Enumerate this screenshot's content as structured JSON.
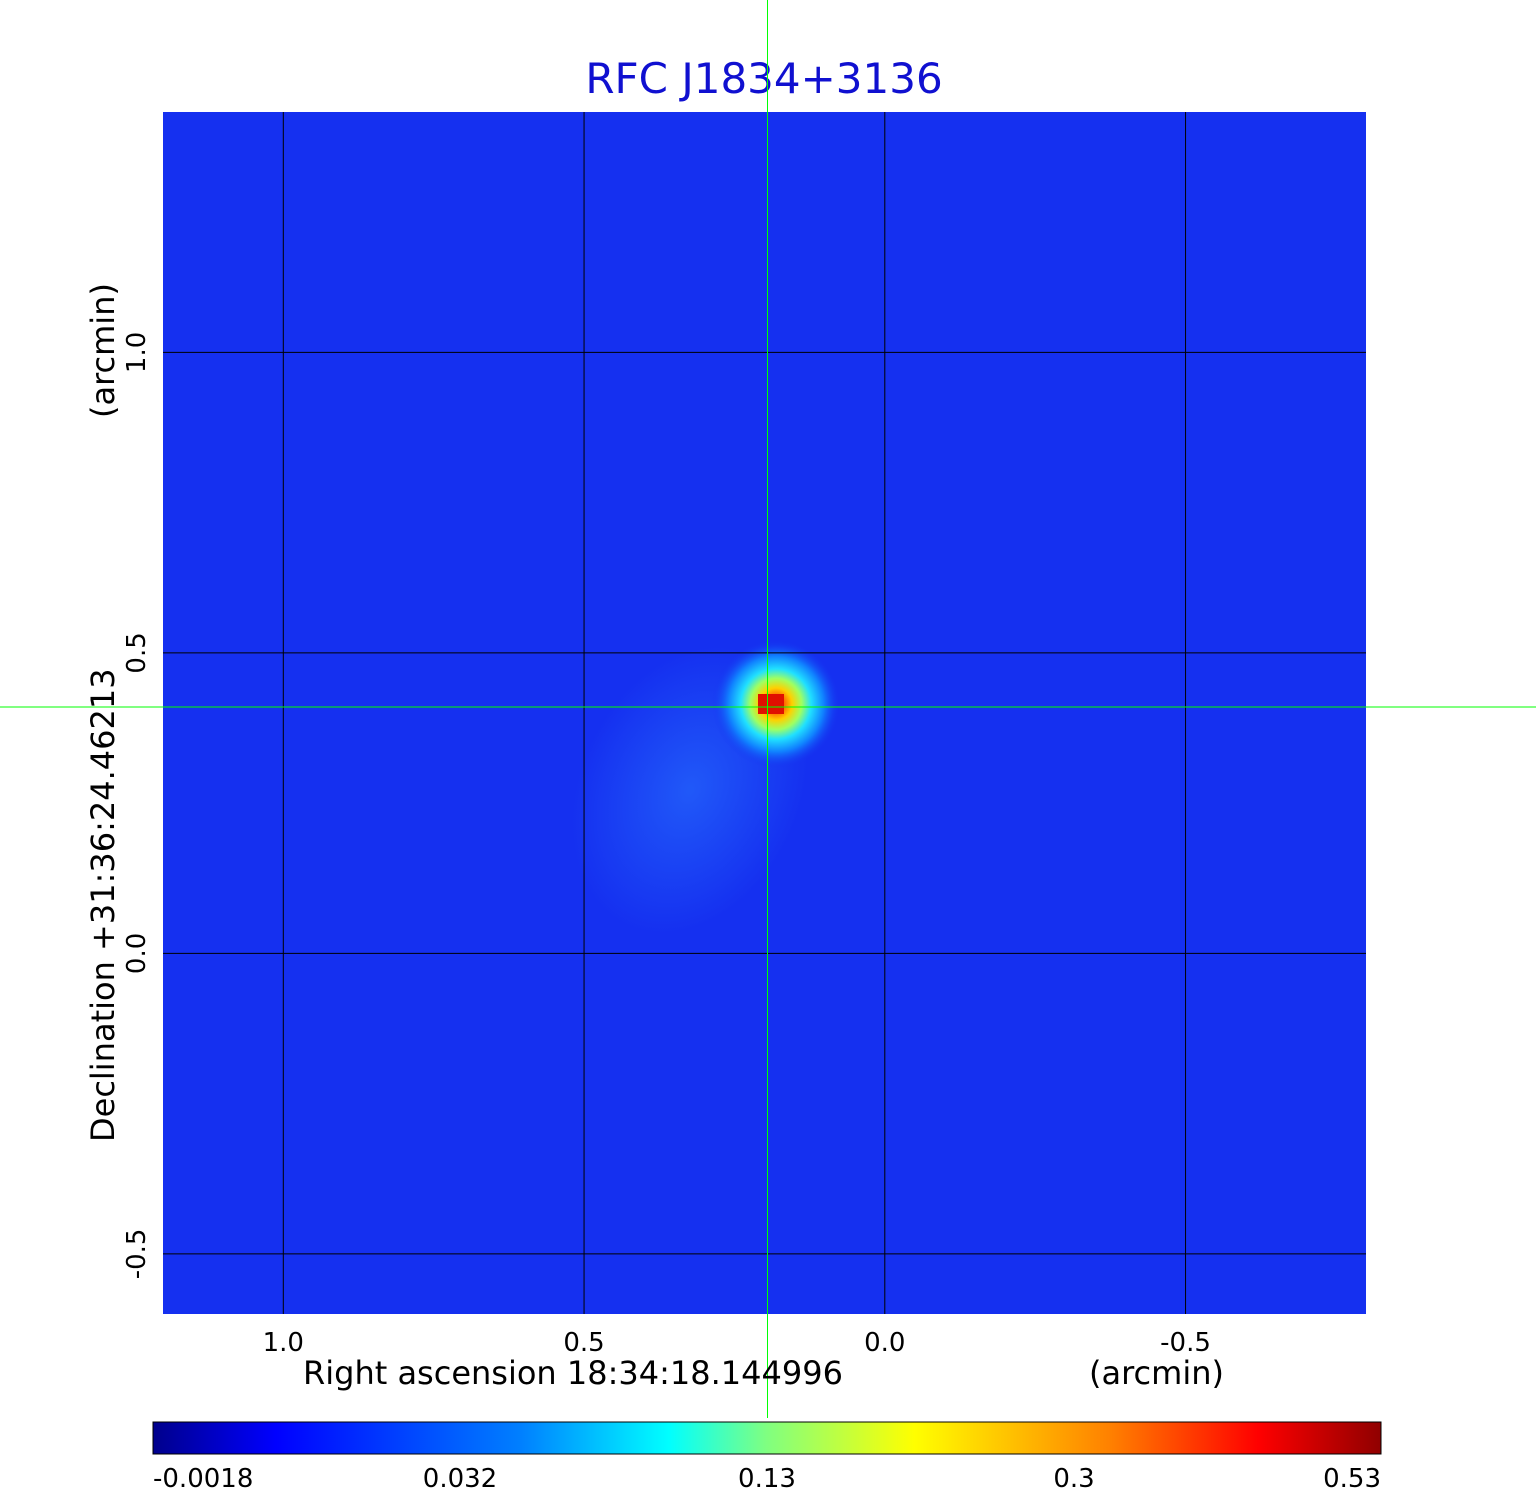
{
  "chart_data": {
    "type": "heatmap",
    "title": "RFC J1834+3136",
    "xlabel": "Right ascension  18:34:18.144996",
    "xlabel_unit": "(arcmin)",
    "ylabel": "Declination  +31:36:24.46213",
    "ylabel_unit": "(arcmin)",
    "x_ticks": [
      1.0,
      0.5,
      0.0,
      -0.5
    ],
    "x_tick_labels": [
      "1.0",
      "0.5",
      "0.0",
      "-0.5"
    ],
    "y_ticks": [
      1.0,
      0.5,
      0.0,
      -0.5
    ],
    "y_tick_labels": [
      "1.0",
      "0.5",
      "0.0",
      "-0.5"
    ],
    "xlim": [
      1.2,
      -0.8
    ],
    "ylim": [
      -0.6,
      1.4
    ],
    "grid": true,
    "crosshair": {
      "x": 0.195,
      "y": 0.41
    },
    "source_peak": {
      "x": 0.18,
      "y": 0.42,
      "value": 0.53
    },
    "colormap": "jet",
    "colorbar": {
      "orientation": "horizontal",
      "tick_labels": [
        "-0.0018",
        "0.032",
        "0.13",
        "0.3",
        "0.53"
      ],
      "range": [
        -0.0018,
        0.53
      ]
    },
    "colors": {
      "background_field": "#1530f0",
      "grid": "#000000",
      "crosshair": "#00ff00",
      "title": "#1010d0"
    }
  }
}
